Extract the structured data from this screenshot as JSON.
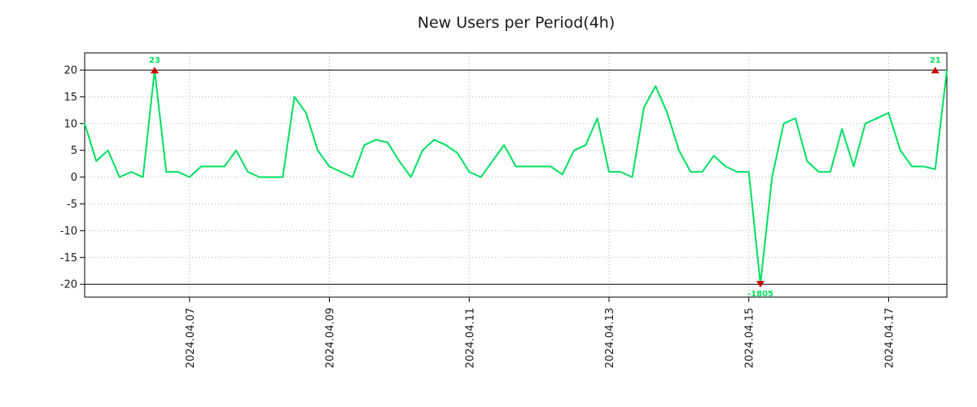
{
  "title": "New Users per Period(4h)",
  "chart_data": {
    "type": "line",
    "title": "New Users per Period(4h)",
    "xlabel": "",
    "ylabel": "",
    "interval_hours": 4,
    "grid": true,
    "border": true,
    "legend": "none",
    "x_tick_labels": [
      "2024.04.07",
      "2024.04.09",
      "2024.04.11",
      "2024.04.13",
      "2024.04.15",
      "2024.04.17"
    ],
    "x_tick_indices": [
      9,
      21,
      33,
      45,
      57,
      69
    ],
    "y_ticks": [
      20,
      15,
      10,
      5,
      0,
      -5,
      -10,
      -15,
      -20
    ],
    "ylim": [
      -22.4,
      23.2
    ],
    "clip": [
      -20,
      20
    ],
    "grid_color": "#b0b0b0",
    "clip_line_color": "#000000",
    "marker_color": "#cc0000",
    "series": [
      {
        "name": "New Users",
        "color": "#00e060",
        "values": [
          10,
          3,
          5,
          0,
          1,
          0,
          23,
          1,
          1,
          0,
          2,
          2,
          2,
          5,
          1,
          0,
          0,
          0,
          15,
          12,
          5,
          2,
          1,
          0,
          6,
          7,
          6.5,
          3,
          0,
          5,
          7,
          6,
          4.5,
          1,
          0,
          3,
          6,
          2,
          2,
          2,
          2,
          0.5,
          5,
          6,
          11,
          1,
          1,
          0,
          13,
          17,
          12,
          5,
          1,
          1,
          4,
          2,
          1,
          1,
          -1805,
          0,
          10,
          11,
          3,
          1,
          1,
          9,
          2,
          10,
          11,
          12,
          5,
          2,
          2,
          1.5,
          21
        ]
      }
    ],
    "annotations": [
      {
        "index": 6,
        "value": 23,
        "label": "23",
        "position": "above"
      },
      {
        "index": 58,
        "value": -1805,
        "label": "-1805",
        "position": "below"
      },
      {
        "index": 73,
        "value": 21,
        "label": "21",
        "position": "above"
      }
    ]
  }
}
